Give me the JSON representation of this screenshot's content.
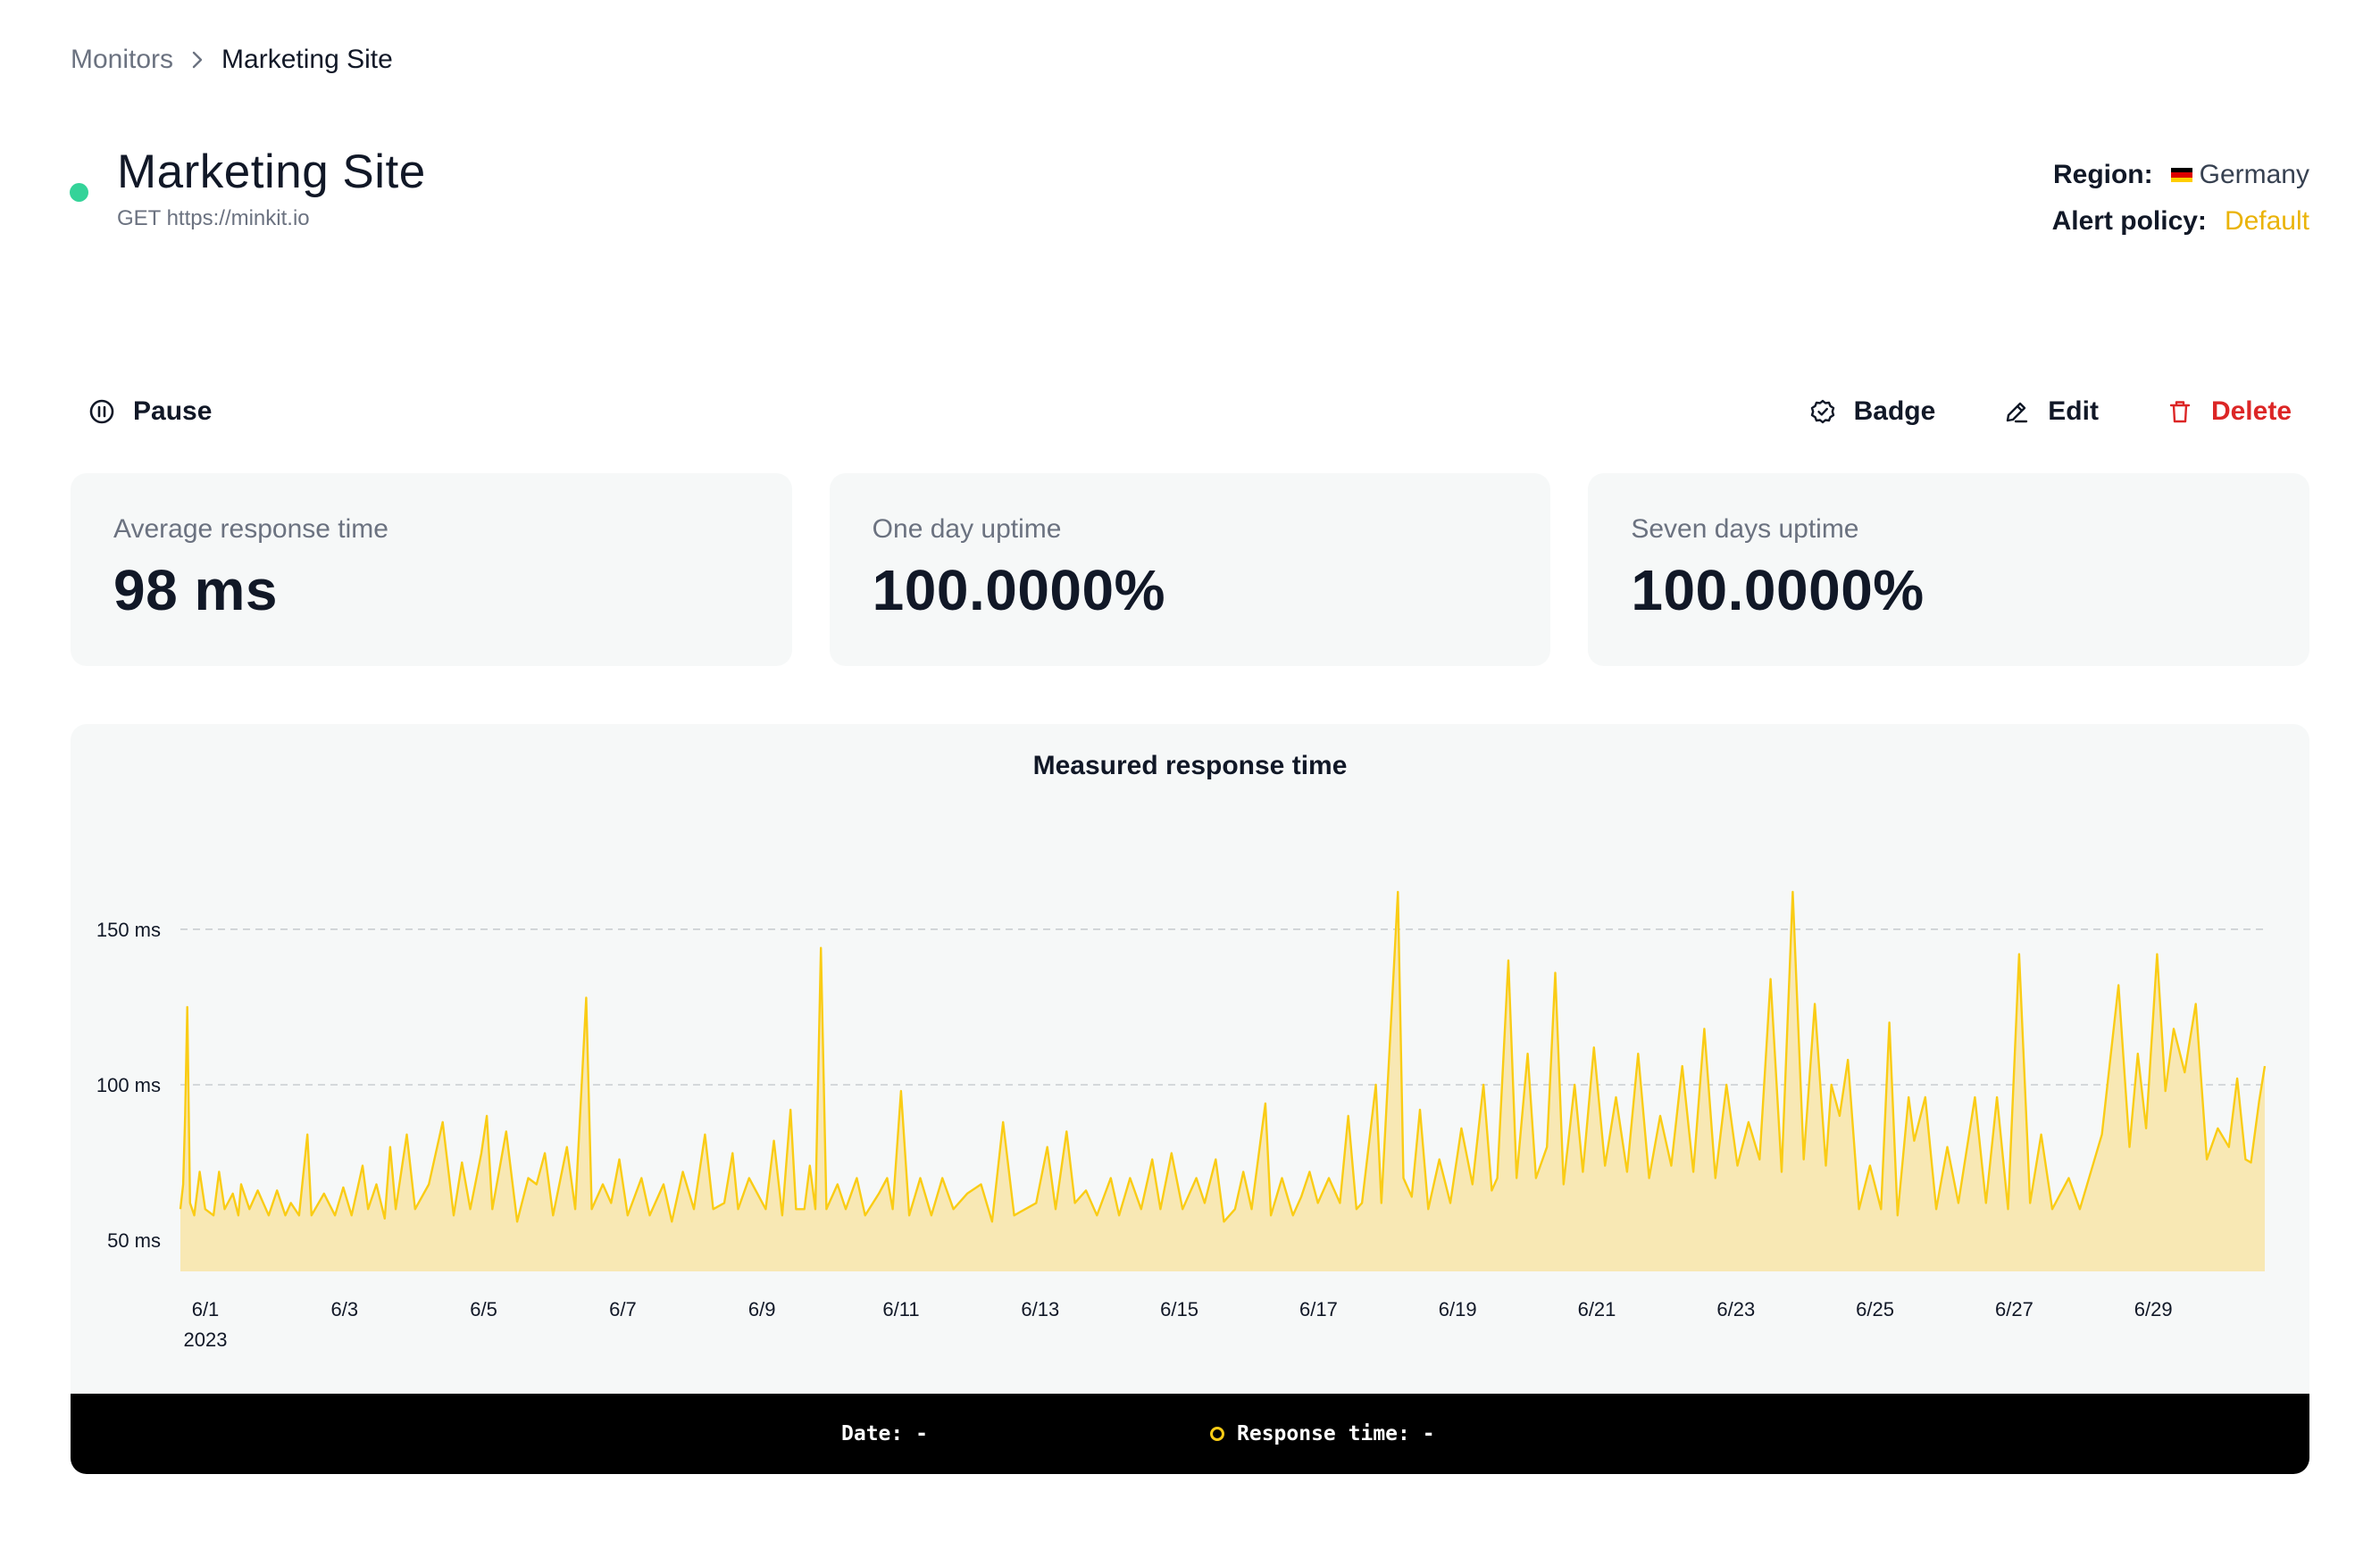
{
  "breadcrumb": {
    "parent": "Monitors",
    "current": "Marketing Site"
  },
  "monitor": {
    "title": "Marketing Site",
    "request": "GET https://minkit.io",
    "status_color": "#34d399"
  },
  "meta": {
    "region_label": "Region:",
    "region_value": "Germany",
    "alert_label": "Alert policy:",
    "alert_value": "Default"
  },
  "toolbar": {
    "pause": "Pause",
    "badge": "Badge",
    "edit": "Edit",
    "delete": "Delete"
  },
  "stats": [
    {
      "label": "Average response time",
      "value": "98 ms"
    },
    {
      "label": "One day uptime",
      "value": "100.0000%"
    },
    {
      "label": "Seven days uptime",
      "value": "100.0000%"
    }
  ],
  "chart_data": {
    "type": "area",
    "title": "Measured response time",
    "xlabel": "",
    "ylabel": "",
    "year_label": "2023",
    "x_ticks": [
      "6/1",
      "6/3",
      "6/5",
      "6/7",
      "6/9",
      "6/11",
      "6/13",
      "6/15",
      "6/17",
      "6/19",
      "6/21",
      "6/23",
      "6/25",
      "6/27",
      "6/29"
    ],
    "y_ticks": [
      {
        "value": 150,
        "label": "150 ms"
      },
      {
        "value": 100,
        "label": "100 ms"
      },
      {
        "value": 50,
        "label": "50 ms"
      }
    ],
    "ylim": [
      40,
      160
    ],
    "x_range_days": [
      0,
      30
    ],
    "series": [
      {
        "name": "Response time",
        "color": "#facc15",
        "fill": "#f8e8b4",
        "points": [
          [
            0,
            60
          ],
          [
            0.1,
            68
          ],
          [
            0.17,
            90
          ],
          [
            0.25,
            125
          ],
          [
            0.35,
            62
          ],
          [
            0.5,
            58
          ],
          [
            0.7,
            72
          ],
          [
            0.9,
            60
          ],
          [
            1.2,
            58
          ],
          [
            1.4,
            72
          ],
          [
            1.6,
            60
          ],
          [
            1.9,
            65
          ],
          [
            2.1,
            58
          ],
          [
            2.2,
            68
          ],
          [
            2.5,
            60
          ],
          [
            2.8,
            66
          ],
          [
            3.2,
            58
          ],
          [
            3.5,
            66
          ],
          [
            3.8,
            58
          ],
          [
            4.0,
            62
          ],
          [
            4.3,
            58
          ],
          [
            4.6,
            84
          ],
          [
            4.75,
            58
          ],
          [
            5.2,
            65
          ],
          [
            5.6,
            58
          ],
          [
            5.9,
            67
          ],
          [
            6.2,
            58
          ],
          [
            6.6,
            74
          ],
          [
            6.8,
            60
          ],
          [
            7.1,
            68
          ],
          [
            7.4,
            57
          ],
          [
            7.6,
            80
          ],
          [
            7.8,
            60
          ],
          [
            8.2,
            84
          ],
          [
            8.5,
            60
          ],
          [
            9.0,
            68
          ],
          [
            9.5,
            88
          ],
          [
            9.9,
            58
          ],
          [
            10.2,
            75
          ],
          [
            10.5,
            60
          ],
          [
            10.9,
            78
          ],
          [
            11.1,
            90
          ],
          [
            11.3,
            60
          ],
          [
            11.8,
            85
          ],
          [
            12.2,
            56
          ],
          [
            12.6,
            70
          ],
          [
            12.9,
            68
          ],
          [
            13.2,
            78
          ],
          [
            13.5,
            58
          ],
          [
            14.0,
            80
          ],
          [
            14.3,
            60
          ],
          [
            14.7,
            128
          ],
          [
            14.9,
            60
          ],
          [
            15.3,
            68
          ],
          [
            15.6,
            62
          ],
          [
            15.9,
            76
          ],
          [
            16.2,
            58
          ],
          [
            16.7,
            70
          ],
          [
            17.0,
            58
          ],
          [
            17.5,
            68
          ],
          [
            17.8,
            56
          ],
          [
            18.2,
            72
          ],
          [
            18.6,
            60
          ],
          [
            19.0,
            84
          ],
          [
            19.3,
            60
          ],
          [
            19.7,
            62
          ],
          [
            20.0,
            78
          ],
          [
            20.2,
            60
          ],
          [
            20.6,
            70
          ],
          [
            21.2,
            60
          ],
          [
            21.5,
            82
          ],
          [
            21.8,
            58
          ],
          [
            22.1,
            92
          ],
          [
            22.3,
            60
          ],
          [
            22.6,
            60
          ],
          [
            22.8,
            74
          ],
          [
            23.0,
            60
          ],
          [
            23.2,
            144
          ],
          [
            23.4,
            60
          ],
          [
            23.8,
            68
          ],
          [
            24.1,
            60
          ],
          [
            24.5,
            70
          ],
          [
            24.8,
            58
          ],
          [
            25.3,
            65
          ],
          [
            25.6,
            70
          ],
          [
            25.8,
            60
          ],
          [
            26.1,
            98
          ],
          [
            26.4,
            58
          ],
          [
            26.8,
            70
          ],
          [
            27.2,
            58
          ],
          [
            27.6,
            70
          ],
          [
            28.0,
            60
          ],
          [
            28.5,
            65
          ],
          [
            29.0,
            68
          ],
          [
            29.4,
            56
          ],
          [
            29.8,
            88
          ],
          [
            30.2,
            58
          ],
          [
            30.6,
            60
          ],
          [
            31.0,
            62
          ],
          [
            31.4,
            80
          ],
          [
            31.7,
            60
          ],
          [
            32.1,
            85
          ],
          [
            32.4,
            62
          ],
          [
            32.8,
            66
          ],
          [
            33.2,
            58
          ],
          [
            33.7,
            70
          ],
          [
            34.0,
            58
          ],
          [
            34.4,
            70
          ],
          [
            34.8,
            60
          ],
          [
            35.2,
            76
          ],
          [
            35.5,
            60
          ],
          [
            35.9,
            78
          ],
          [
            36.3,
            60
          ],
          [
            36.8,
            70
          ],
          [
            37.1,
            62
          ],
          [
            37.5,
            76
          ],
          [
            37.8,
            56
          ],
          [
            38.2,
            60
          ],
          [
            38.5,
            72
          ],
          [
            38.8,
            60
          ],
          [
            39.3,
            94
          ],
          [
            39.5,
            58
          ],
          [
            39.9,
            70
          ],
          [
            40.3,
            58
          ],
          [
            40.6,
            64
          ],
          [
            40.9,
            72
          ],
          [
            41.2,
            62
          ],
          [
            41.6,
            70
          ],
          [
            42.0,
            62
          ],
          [
            42.3,
            90
          ],
          [
            42.6,
            60
          ],
          [
            42.8,
            62
          ],
          [
            43.3,
            100
          ],
          [
            43.5,
            62
          ],
          [
            44.1,
            162
          ],
          [
            44.3,
            70
          ],
          [
            44.6,
            64
          ],
          [
            44.9,
            92
          ],
          [
            45.2,
            60
          ],
          [
            45.6,
            76
          ],
          [
            46.0,
            62
          ],
          [
            46.4,
            86
          ],
          [
            46.8,
            68
          ],
          [
            47.2,
            100
          ],
          [
            47.5,
            66
          ],
          [
            47.7,
            70
          ],
          [
            48.1,
            140
          ],
          [
            48.4,
            70
          ],
          [
            48.8,
            110
          ],
          [
            49.1,
            70
          ],
          [
            49.5,
            80
          ],
          [
            49.8,
            136
          ],
          [
            50.1,
            68
          ],
          [
            50.5,
            100
          ],
          [
            50.8,
            72
          ],
          [
            51.2,
            112
          ],
          [
            51.6,
            74
          ],
          [
            52.0,
            96
          ],
          [
            52.4,
            72
          ],
          [
            52.8,
            110
          ],
          [
            53.2,
            70
          ],
          [
            53.6,
            90
          ],
          [
            54.0,
            74
          ],
          [
            54.4,
            106
          ],
          [
            54.8,
            72
          ],
          [
            55.2,
            118
          ],
          [
            55.6,
            70
          ],
          [
            56.0,
            100
          ],
          [
            56.4,
            74
          ],
          [
            56.8,
            88
          ],
          [
            57.2,
            76
          ],
          [
            57.6,
            134
          ],
          [
            58.0,
            72
          ],
          [
            58.4,
            162
          ],
          [
            58.8,
            76
          ],
          [
            59.2,
            126
          ],
          [
            59.6,
            74
          ],
          [
            59.8,
            100
          ],
          [
            60.1,
            90
          ],
          [
            60.4,
            108
          ],
          [
            60.8,
            60
          ],
          [
            61.2,
            74
          ],
          [
            61.6,
            60
          ],
          [
            61.9,
            120
          ],
          [
            62.2,
            58
          ],
          [
            62.6,
            96
          ],
          [
            62.8,
            82
          ],
          [
            63.2,
            96
          ],
          [
            63.6,
            60
          ],
          [
            64.0,
            80
          ],
          [
            64.4,
            62
          ],
          [
            65.0,
            96
          ],
          [
            65.4,
            62
          ],
          [
            65.8,
            96
          ],
          [
            66.2,
            60
          ],
          [
            66.6,
            142
          ],
          [
            67.0,
            62
          ],
          [
            67.4,
            84
          ],
          [
            67.8,
            60
          ],
          [
            68.4,
            70
          ],
          [
            68.8,
            60
          ],
          [
            69.6,
            84
          ],
          [
            70.2,
            132
          ],
          [
            70.6,
            80
          ],
          [
            70.9,
            110
          ],
          [
            71.2,
            86
          ],
          [
            71.6,
            142
          ],
          [
            71.9,
            98
          ],
          [
            72.2,
            118
          ],
          [
            72.6,
            104
          ],
          [
            73.0,
            126
          ],
          [
            73.4,
            76
          ],
          [
            73.8,
            86
          ],
          [
            74.2,
            80
          ],
          [
            74.5,
            102
          ],
          [
            74.8,
            76
          ],
          [
            75.0,
            75
          ],
          [
            75.3,
            95
          ],
          [
            75.5,
            106
          ]
        ]
      }
    ]
  }
}
